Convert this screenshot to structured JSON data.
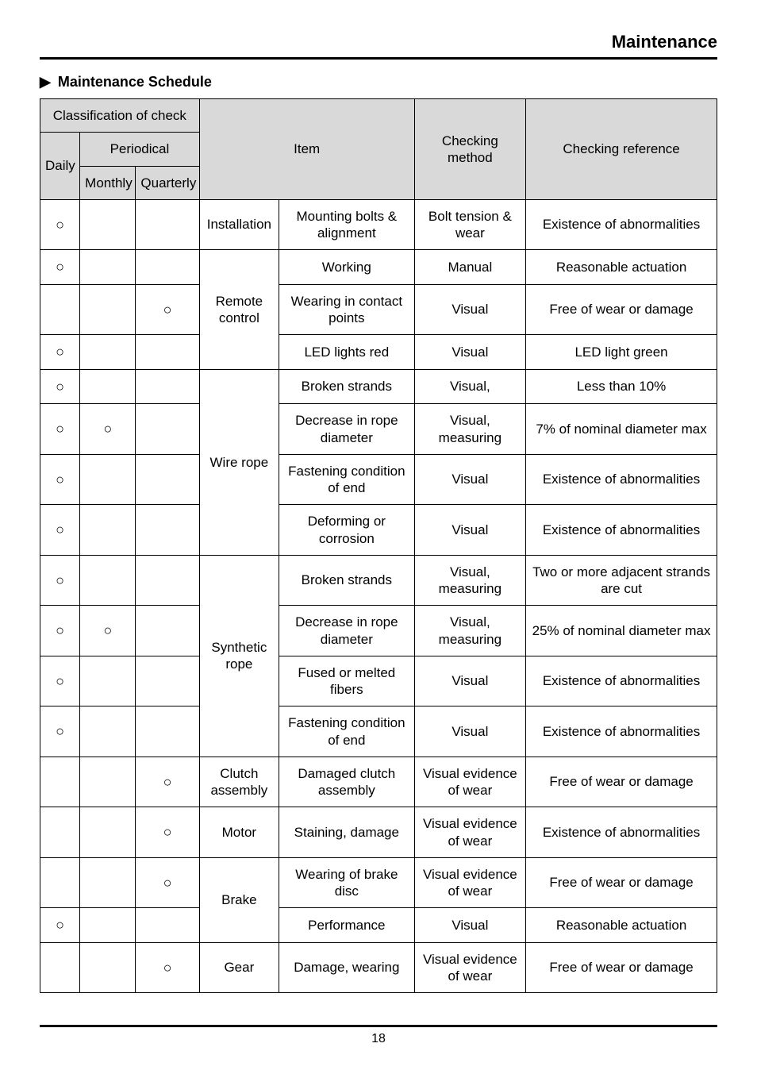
{
  "page": {
    "title": "Maintenance",
    "section_heading": "Maintenance Schedule",
    "arrow": "▶",
    "number": "18"
  },
  "circle": "○",
  "headers": {
    "classification": "Classification of check",
    "daily": "Daily",
    "periodical": "Periodical",
    "monthly": "Monthly",
    "quarterly": "Quarterly",
    "item": "Item",
    "method": "Checking method",
    "reference": "Checking reference"
  },
  "groups": {
    "installation": "Installation",
    "remote": "Remote control",
    "wire": "Wire rope",
    "synthetic": "Synthetic rope",
    "clutch": "Clutch assembly",
    "motor": "Motor",
    "brake": "Brake",
    "gear": "Gear"
  },
  "rows": {
    "r0": {
      "detail": "Mounting bolts & alignment",
      "method": "Bolt tension & wear",
      "ref": "Existence of abnormalities"
    },
    "r1": {
      "detail": "Working",
      "method": "Manual",
      "ref": "Reasonable actuation"
    },
    "r2": {
      "detail": "Wearing in contact points",
      "method": "Visual",
      "ref": "Free of wear or damage"
    },
    "r3": {
      "detail": "LED lights red",
      "method": "Visual",
      "ref": "LED light green"
    },
    "r4": {
      "detail": "Broken strands",
      "method": "Visual,",
      "ref": "Less than 10%"
    },
    "r5": {
      "detail": "Decrease in rope diameter",
      "method": "Visual, measuring",
      "ref": "7% of nominal diameter max"
    },
    "r6": {
      "detail": "Fastening condition of end",
      "method": "Visual",
      "ref": "Existence of abnormalities"
    },
    "r7": {
      "detail": "Deforming or corrosion",
      "method": "Visual",
      "ref": "Existence of abnormalities"
    },
    "r8": {
      "detail": "Broken strands",
      "method": "Visual, measuring",
      "ref": "Two or more adjacent strands are cut"
    },
    "r9": {
      "detail": "Decrease in rope diameter",
      "method": "Visual, measuring",
      "ref": "25% of nominal diameter max"
    },
    "r10": {
      "detail": "Fused or melted fibers",
      "method": "Visual",
      "ref": "Existence of abnormalities"
    },
    "r11": {
      "detail": "Fastening condition of end",
      "method": "Visual",
      "ref": "Existence of abnormalities"
    },
    "r12": {
      "detail": "Damaged clutch assembly",
      "method": "Visual evidence of wear",
      "ref": "Free of wear or damage"
    },
    "r13": {
      "detail": "Staining, damage",
      "method": "Visual evidence of wear",
      "ref": "Existence of abnormalities"
    },
    "r14": {
      "detail": "Wearing of brake disc",
      "method": "Visual evidence of wear",
      "ref": "Free of wear or damage"
    },
    "r15": {
      "detail": "Performance",
      "method": "Visual",
      "ref": "Reasonable actuation"
    },
    "r16": {
      "detail": "Damage, wearing",
      "method": "Visual evidence of wear",
      "ref": "Free of wear or damage"
    }
  }
}
